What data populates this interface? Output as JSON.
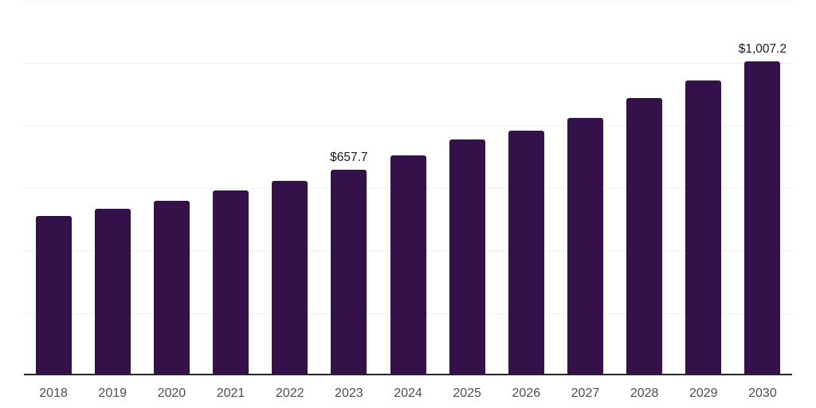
{
  "chart": {
    "background": "#ffffff",
    "bar_color": "#35114a",
    "axis_line_color": "#262626",
    "gridline_color": "#f0f0f1",
    "tick_label_color": "#4d4d4d",
    "data_label_color": "#1a1a1a"
  },
  "chart_data": {
    "type": "bar",
    "title": "",
    "xlabel": "",
    "ylabel": "",
    "categories": [
      "2018",
      "2019",
      "2020",
      "2021",
      "2022",
      "2023",
      "2024",
      "2025",
      "2026",
      "2027",
      "2028",
      "2029",
      "2030"
    ],
    "values": [
      511,
      534,
      559,
      592,
      624,
      657.7,
      704,
      755,
      783,
      825,
      889,
      945,
      1007.2
    ],
    "ylim": [
      0,
      1200
    ],
    "gridline_step": 200,
    "grid": true,
    "legend": false,
    "data_labels": [
      {
        "category": "2023",
        "text": "$657.7"
      },
      {
        "category": "2030",
        "text": "$1,007.2"
      }
    ]
  }
}
